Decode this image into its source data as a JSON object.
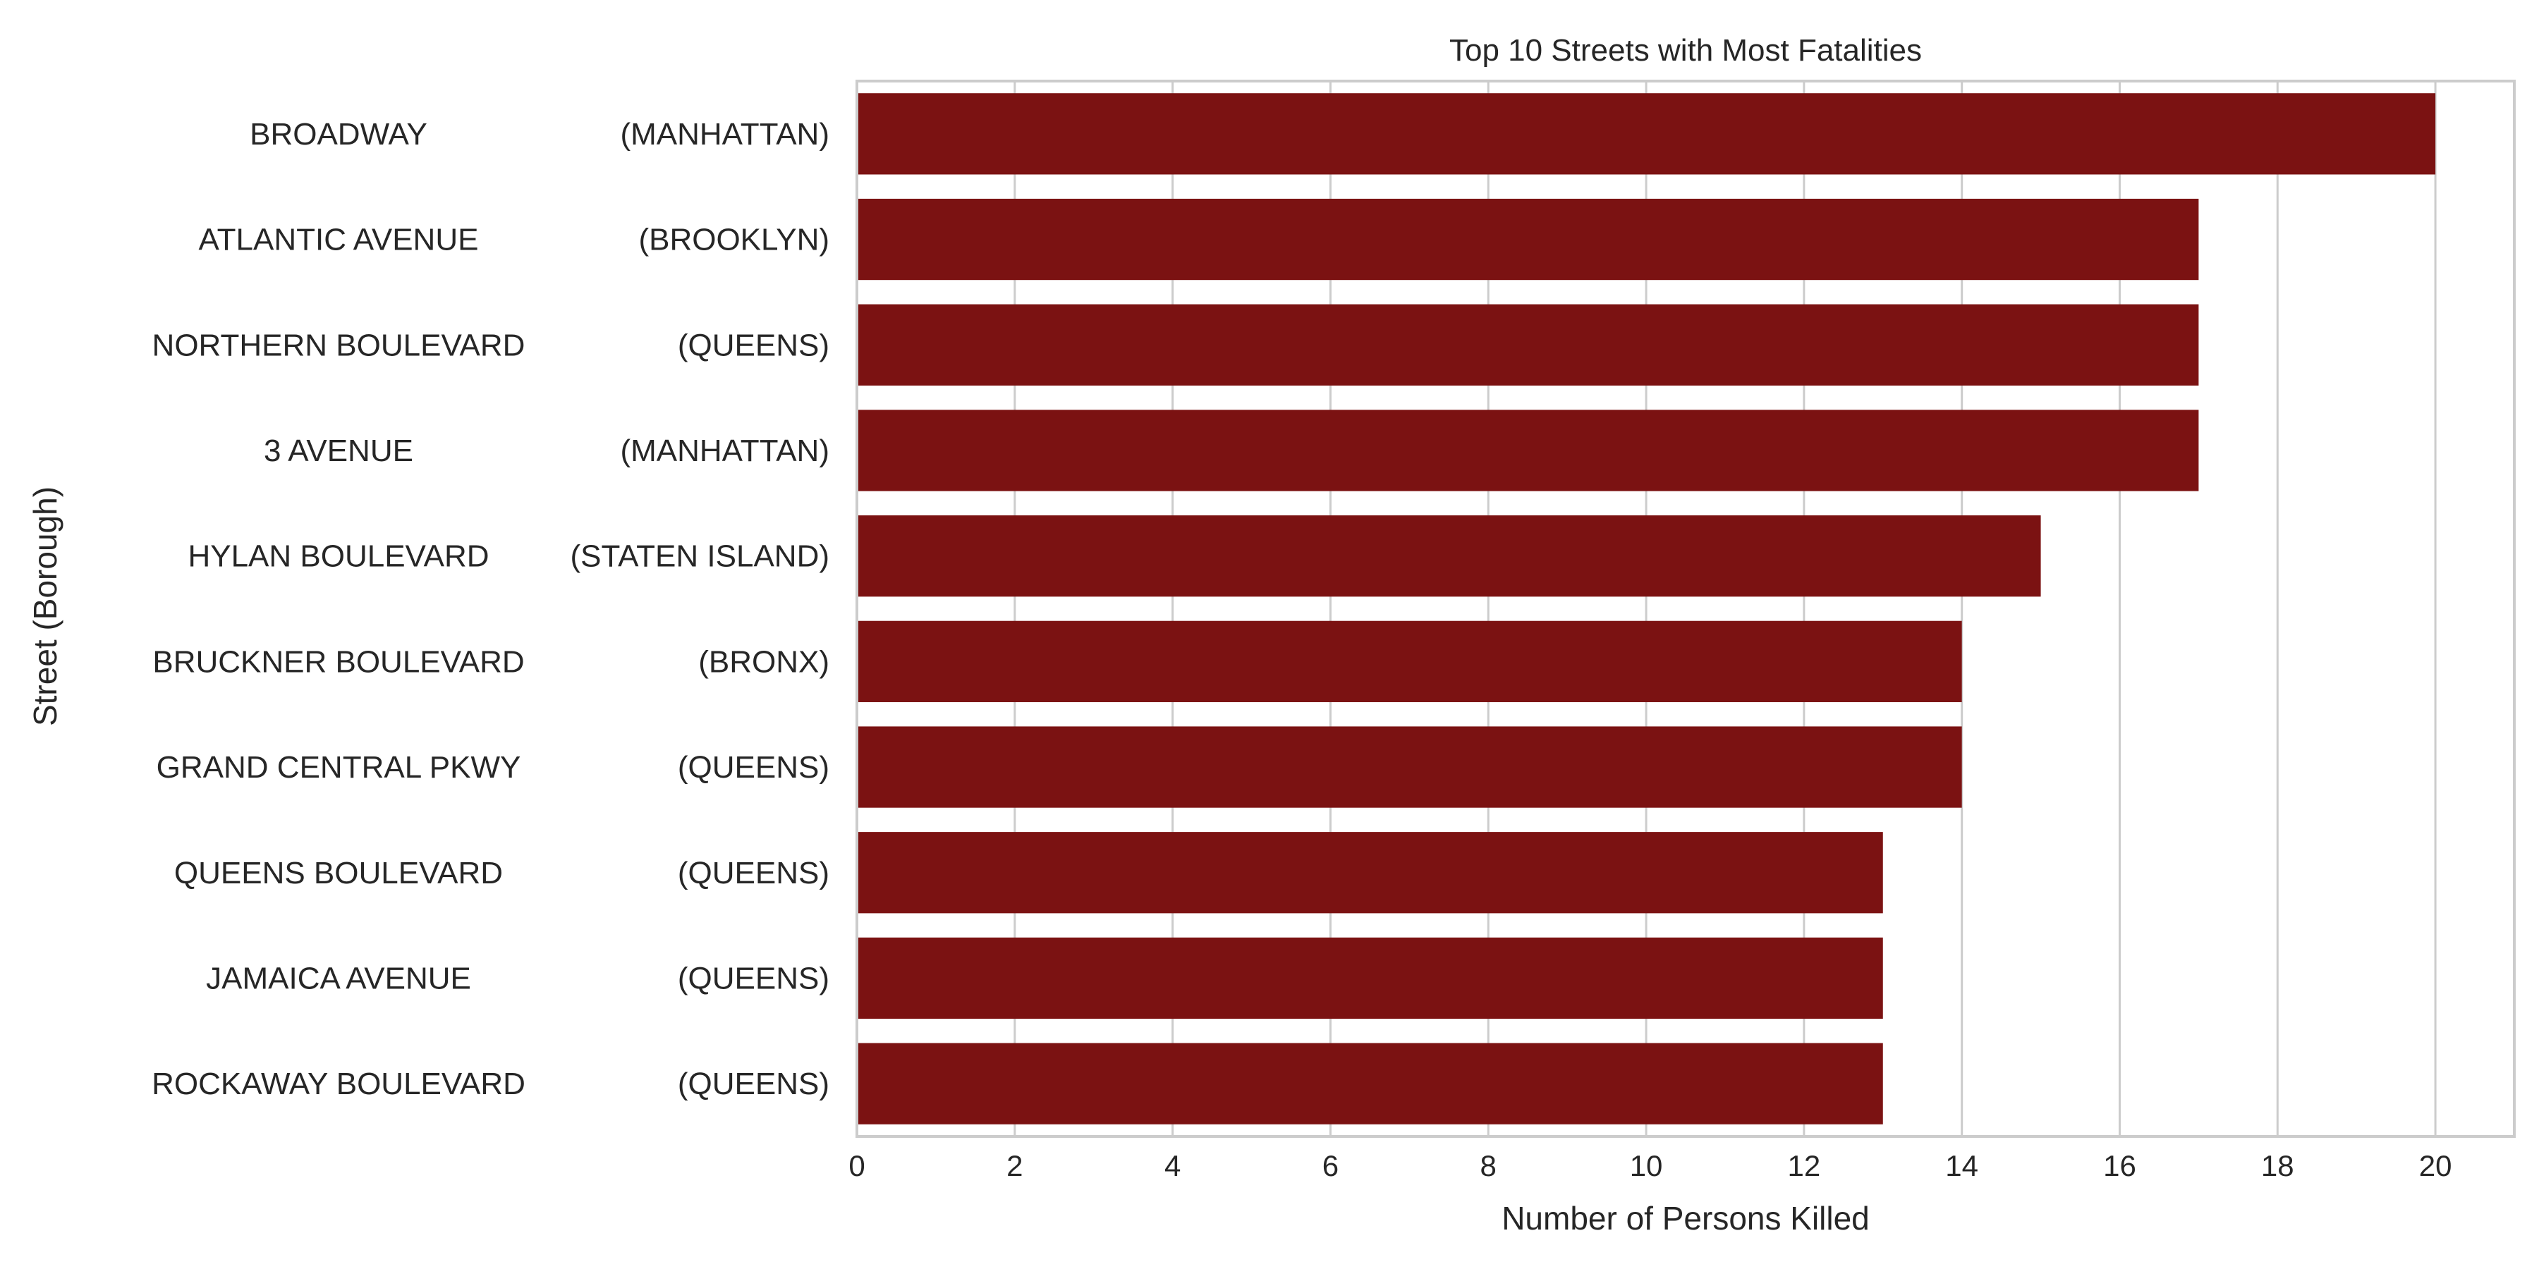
{
  "chart_data": {
    "type": "bar",
    "orientation": "horizontal",
    "title": "Top 10 Streets with Most Fatalities",
    "xlabel": "Number of Persons Killed",
    "ylabel": "Street (Borough)",
    "xlim": [
      0,
      21
    ],
    "xticks": [
      0,
      2,
      4,
      6,
      8,
      10,
      12,
      14,
      16,
      18,
      20
    ],
    "grid": "vertical",
    "bar_color": "#7b1212",
    "categories": [
      {
        "street": "BROADWAY",
        "borough": "(MANHATTAN)"
      },
      {
        "street": "ATLANTIC AVENUE",
        "borough": "(BROOKLYN)"
      },
      {
        "street": "NORTHERN BOULEVARD",
        "borough": "(QUEENS)"
      },
      {
        "street": "3 AVENUE",
        "borough": "(MANHATTAN)"
      },
      {
        "street": "HYLAN BOULEVARD",
        "borough": "(STATEN ISLAND)"
      },
      {
        "street": "BRUCKNER BOULEVARD",
        "borough": "(BRONX)"
      },
      {
        "street": "GRAND CENTRAL PKWY",
        "borough": "(QUEENS)"
      },
      {
        "street": "QUEENS BOULEVARD",
        "borough": "(QUEENS)"
      },
      {
        "street": "JAMAICA AVENUE",
        "borough": "(QUEENS)"
      },
      {
        "street": "ROCKAWAY BOULEVARD",
        "borough": "(QUEENS)"
      }
    ],
    "values": [
      20,
      17,
      17,
      17,
      15,
      14,
      14,
      13,
      13,
      13
    ]
  }
}
